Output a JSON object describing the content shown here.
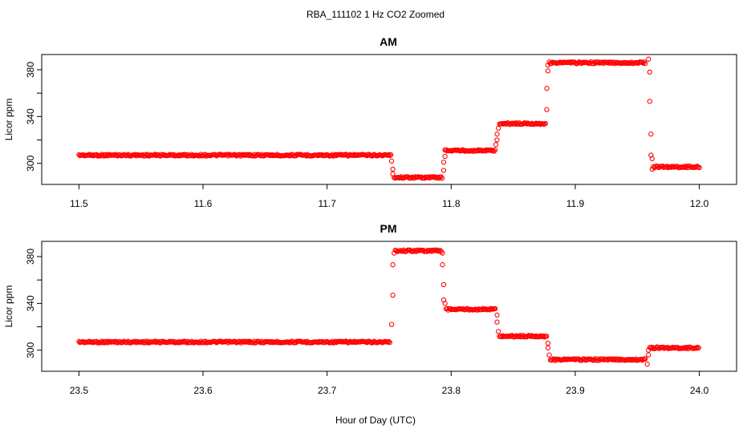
{
  "figure": {
    "title": "RBA_111102  1 Hz CO2 Zoomed",
    "xlabel": "Hour of Day (UTC)"
  },
  "chart_data": [
    {
      "type": "scatter",
      "title": "AM",
      "xlabel": "",
      "ylabel": "Licor ppm",
      "xlim": [
        11.47,
        12.03
      ],
      "ylim": [
        282,
        393
      ],
      "xticks": [
        "11.5",
        "11.6",
        "11.7",
        "11.8",
        "11.9",
        "12.0"
      ],
      "yticks": [
        "300",
        "340",
        "380"
      ],
      "yminorticks": [
        320,
        360
      ],
      "marker_color": "#ff0000",
      "marker": "open-circle",
      "segments": [
        {
          "x_start": 11.5,
          "x_end": 11.752,
          "y": 307
        },
        {
          "x_start": 11.754,
          "x_end": 11.793,
          "y": 288
        },
        {
          "x_start": 11.795,
          "x_end": 11.836,
          "y": 311
        },
        {
          "x_start": 11.839,
          "x_end": 11.876,
          "y": 334
        },
        {
          "x_start": 11.879,
          "x_end": 11.957,
          "y": 386
        },
        {
          "x_start": 11.963,
          "x_end": 12.0,
          "y": 297
        }
      ],
      "transition_points": [
        [
          11.752,
          302
        ],
        [
          11.753,
          295
        ],
        [
          11.753,
          291
        ],
        [
          11.794,
          294
        ],
        [
          11.794,
          301
        ],
        [
          11.795,
          306
        ],
        [
          11.836,
          316
        ],
        [
          11.837,
          320
        ],
        [
          11.837,
          325
        ],
        [
          11.838,
          330
        ],
        [
          11.877,
          346
        ],
        [
          11.877,
          364
        ],
        [
          11.878,
          379
        ],
        [
          11.878,
          384
        ],
        [
          11.959,
          389
        ],
        [
          11.96,
          378
        ],
        [
          11.96,
          353
        ],
        [
          11.961,
          325
        ],
        [
          11.961,
          307
        ],
        [
          11.962,
          304
        ],
        [
          11.962,
          295
        ]
      ]
    },
    {
      "type": "scatter",
      "title": "PM",
      "xlabel": "",
      "ylabel": "Licor ppm",
      "xlim": [
        23.47,
        24.03
      ],
      "ylim": [
        282,
        393
      ],
      "xticks": [
        "23.5",
        "23.6",
        "23.7",
        "23.8",
        "23.9",
        "24.0"
      ],
      "yticks": [
        "300",
        "340",
        "380"
      ],
      "yminorticks": [
        320,
        360
      ],
      "marker_color": "#ff0000",
      "marker": "open-circle",
      "segments": [
        {
          "x_start": 23.5,
          "x_end": 23.751,
          "y": 307
        },
        {
          "x_start": 23.755,
          "x_end": 23.792,
          "y": 385
        },
        {
          "x_start": 23.796,
          "x_end": 23.836,
          "y": 335
        },
        {
          "x_start": 23.839,
          "x_end": 23.877,
          "y": 312
        },
        {
          "x_start": 23.88,
          "x_end": 23.957,
          "y": 292
        },
        {
          "x_start": 23.96,
          "x_end": 24.0,
          "y": 302
        }
      ],
      "transition_points": [
        [
          23.752,
          322
        ],
        [
          23.753,
          347
        ],
        [
          23.753,
          373
        ],
        [
          23.754,
          383
        ],
        [
          23.793,
          383
        ],
        [
          23.793,
          373
        ],
        [
          23.794,
          356
        ],
        [
          23.794,
          343
        ],
        [
          23.795,
          340
        ],
        [
          23.837,
          330
        ],
        [
          23.837,
          324
        ],
        [
          23.838,
          316
        ],
        [
          23.878,
          306
        ],
        [
          23.878,
          302
        ],
        [
          23.879,
          296
        ],
        [
          23.958,
          288
        ],
        [
          23.959,
          296
        ],
        [
          23.959,
          300
        ]
      ]
    }
  ]
}
